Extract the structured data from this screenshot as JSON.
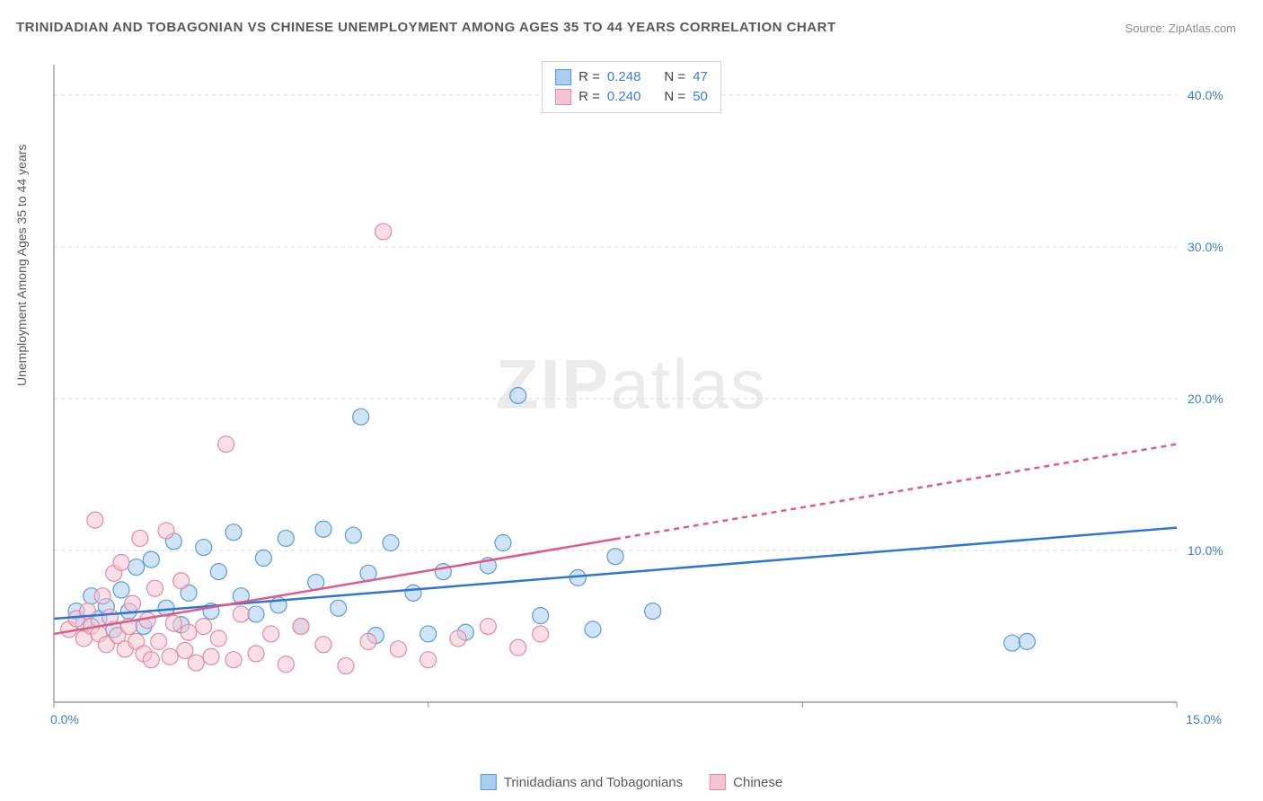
{
  "title": "TRINIDADIAN AND TOBAGONIAN VS CHINESE UNEMPLOYMENT AMONG AGES 35 TO 44 YEARS CORRELATION CHART",
  "source": "Source: ZipAtlas.com",
  "y_axis_label": "Unemployment Among Ages 35 to 44 years",
  "watermark_a": "ZIP",
  "watermark_b": "atlas",
  "chart": {
    "type": "scatter",
    "background_color": "#ffffff",
    "grid_color": "#d9d9d9",
    "axis_color": "#888888",
    "xlim": [
      0,
      15
    ],
    "ylim": [
      0,
      42
    ],
    "x_ticks": [
      0,
      5,
      10,
      15
    ],
    "x_tick_labels": [
      "0.0%",
      "",
      "",
      "15.0%"
    ],
    "y_ticks": [
      10,
      20,
      30,
      40
    ],
    "y_tick_labels": [
      "10.0%",
      "20.0%",
      "30.0%",
      "40.0%"
    ],
    "marker_radius": 9,
    "marker_opacity": 0.55,
    "series": [
      {
        "name": "Trinidadians and Tobagonians",
        "color_fill": "#a9cdf0",
        "color_stroke": "#5b9bd5",
        "trend_color": "#2e75d6",
        "R": "0.248",
        "N": "47",
        "trend": {
          "x1": 0,
          "y1": 5.5,
          "x2": 15,
          "y2": 11.5,
          "solid_until_x": 15
        },
        "points": [
          [
            0.3,
            6.0
          ],
          [
            0.4,
            5.2
          ],
          [
            0.5,
            7.0
          ],
          [
            0.6,
            5.5
          ],
          [
            0.7,
            6.3
          ],
          [
            0.8,
            4.8
          ],
          [
            0.9,
            7.4
          ],
          [
            1.0,
            6.0
          ],
          [
            1.1,
            8.9
          ],
          [
            1.2,
            5.0
          ],
          [
            1.3,
            9.4
          ],
          [
            1.5,
            6.2
          ],
          [
            1.6,
            10.6
          ],
          [
            1.7,
            5.1
          ],
          [
            1.8,
            7.2
          ],
          [
            2.0,
            10.2
          ],
          [
            2.1,
            6.0
          ],
          [
            2.2,
            8.6
          ],
          [
            2.4,
            11.2
          ],
          [
            2.5,
            7.0
          ],
          [
            2.7,
            5.8
          ],
          [
            2.8,
            9.5
          ],
          [
            3.0,
            6.4
          ],
          [
            3.1,
            10.8
          ],
          [
            3.3,
            5.0
          ],
          [
            3.5,
            7.9
          ],
          [
            3.6,
            11.4
          ],
          [
            3.8,
            6.2
          ],
          [
            4.0,
            11.0
          ],
          [
            4.1,
            18.8
          ],
          [
            4.2,
            8.5
          ],
          [
            4.3,
            4.4
          ],
          [
            4.5,
            10.5
          ],
          [
            4.8,
            7.2
          ],
          [
            5.0,
            4.5
          ],
          [
            5.2,
            8.6
          ],
          [
            5.5,
            4.6
          ],
          [
            5.8,
            9.0
          ],
          [
            6.0,
            10.5
          ],
          [
            6.2,
            20.2
          ],
          [
            6.5,
            5.7
          ],
          [
            7.0,
            8.2
          ],
          [
            7.2,
            4.8
          ],
          [
            7.5,
            9.6
          ],
          [
            8.0,
            6.0
          ],
          [
            12.8,
            3.9
          ],
          [
            13.0,
            4.0
          ]
        ]
      },
      {
        "name": "Chinese",
        "color_fill": "#f5c4d1",
        "color_stroke": "#e28aa2",
        "trend_color": "#e05b84",
        "R": "0.240",
        "N": "50",
        "trend": {
          "x1": 0,
          "y1": 4.5,
          "x2": 15,
          "y2": 17.0,
          "solid_until_x": 7.5
        },
        "points": [
          [
            0.2,
            4.8
          ],
          [
            0.3,
            5.5
          ],
          [
            0.4,
            4.2
          ],
          [
            0.45,
            6.0
          ],
          [
            0.5,
            5.0
          ],
          [
            0.55,
            12.0
          ],
          [
            0.6,
            4.5
          ],
          [
            0.65,
            7.0
          ],
          [
            0.7,
            3.8
          ],
          [
            0.75,
            5.6
          ],
          [
            0.8,
            8.5
          ],
          [
            0.85,
            4.4
          ],
          [
            0.9,
            9.2
          ],
          [
            0.95,
            3.5
          ],
          [
            1.0,
            5.0
          ],
          [
            1.05,
            6.5
          ],
          [
            1.1,
            4.0
          ],
          [
            1.15,
            10.8
          ],
          [
            1.2,
            3.2
          ],
          [
            1.25,
            5.4
          ],
          [
            1.3,
            2.8
          ],
          [
            1.35,
            7.5
          ],
          [
            1.4,
            4.0
          ],
          [
            1.5,
            11.3
          ],
          [
            1.55,
            3.0
          ],
          [
            1.6,
            5.2
          ],
          [
            1.7,
            8.0
          ],
          [
            1.75,
            3.4
          ],
          [
            1.8,
            4.6
          ],
          [
            1.9,
            2.6
          ],
          [
            2.0,
            5.0
          ],
          [
            2.1,
            3.0
          ],
          [
            2.2,
            4.2
          ],
          [
            2.3,
            17.0
          ],
          [
            2.4,
            2.8
          ],
          [
            2.5,
            5.8
          ],
          [
            2.7,
            3.2
          ],
          [
            2.9,
            4.5
          ],
          [
            3.1,
            2.5
          ],
          [
            3.3,
            5.0
          ],
          [
            3.6,
            3.8
          ],
          [
            3.9,
            2.4
          ],
          [
            4.2,
            4.0
          ],
          [
            4.4,
            31.0
          ],
          [
            4.6,
            3.5
          ],
          [
            5.0,
            2.8
          ],
          [
            5.4,
            4.2
          ],
          [
            5.8,
            5.0
          ],
          [
            6.2,
            3.6
          ],
          [
            6.5,
            4.5
          ]
        ]
      }
    ]
  },
  "legend_top_prefix_R": "R  =",
  "legend_top_prefix_N": "N  =",
  "legend_bottom": [
    {
      "label": "Trinidadians and Tobagonians",
      "fill": "#a9cdf0",
      "stroke": "#5b9bd5"
    },
    {
      "label": "Chinese",
      "fill": "#f5c4d1",
      "stroke": "#e28aa2"
    }
  ]
}
